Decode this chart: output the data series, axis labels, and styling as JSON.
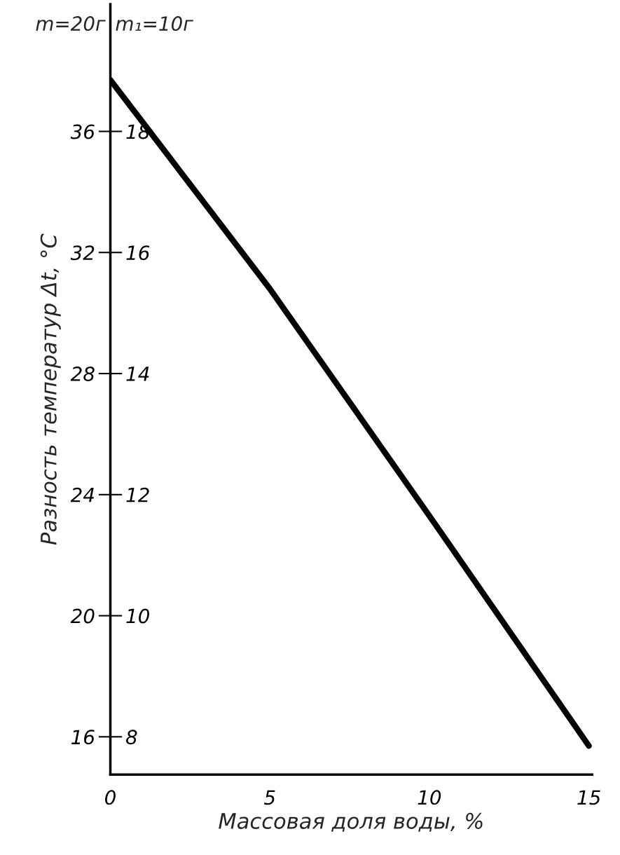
{
  "chart_data": {
    "type": "line",
    "xlabel": "Массовая доля воды, %",
    "ylabel": "Разность температур Δt, °C",
    "x": [
      0,
      5,
      10,
      15
    ],
    "series": [
      {
        "color": "#000000",
        "values": [
          37.7,
          30.8,
          23.3,
          15.7
        ]
      }
    ],
    "xlim": [
      0,
      15.1
    ],
    "xticks": [
      0,
      5,
      10,
      15
    ],
    "ylim": [
      14.75,
      40.2
    ],
    "yticks": [
      16,
      20,
      24,
      28,
      32,
      36
    ],
    "y2lim": [
      7.375,
      20.1
    ],
    "y2ticks": [
      8,
      10,
      12,
      14,
      16,
      18
    ],
    "annotations": [
      "m=20г",
      "m₁=10г"
    ],
    "grid": false,
    "legend": false,
    "marker": "none",
    "line_style": "solid"
  }
}
